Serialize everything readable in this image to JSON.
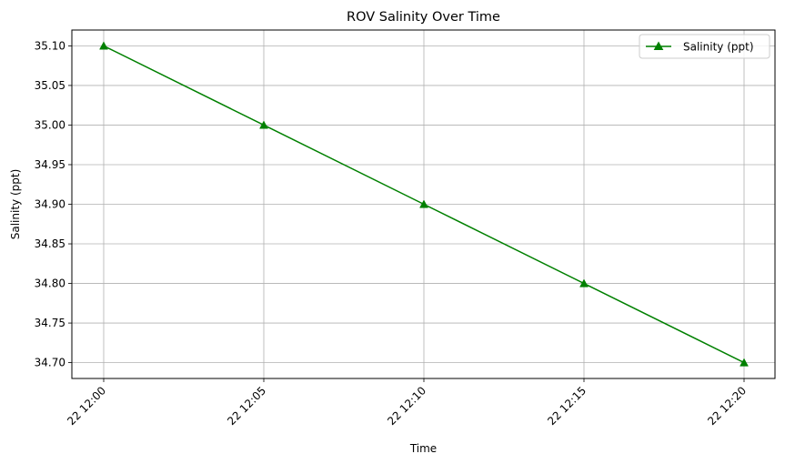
{
  "chart_data": {
    "type": "line",
    "title": "ROV Salinity Over Time",
    "xlabel": "Time",
    "ylabel": "Salinity (ppt)",
    "x": [
      "22 12:00",
      "22 12:05",
      "22 12:10",
      "22 12:15",
      "22 12:20"
    ],
    "series": [
      {
        "name": "Salinity (ppt)",
        "values": [
          35.1,
          35.0,
          34.9,
          34.8,
          34.7
        ],
        "color": "#008000",
        "marker": "triangle-up-icon"
      }
    ],
    "ylim": [
      34.68,
      35.12
    ],
    "yticks": [
      34.7,
      34.75,
      34.8,
      34.85,
      34.9,
      34.95,
      35.0,
      35.05,
      35.1
    ],
    "ytick_labels": [
      "34.70",
      "34.75",
      "34.80",
      "34.85",
      "34.90",
      "34.95",
      "35.00",
      "35.05",
      "35.10"
    ],
    "grid": true,
    "legend_position": "top-right",
    "x_tick_rotation": 45
  }
}
